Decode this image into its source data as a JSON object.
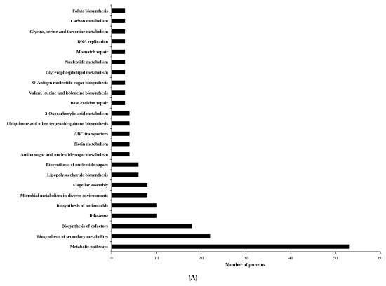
{
  "chart_data": {
    "type": "bar",
    "orientation": "horizontal",
    "categories": [
      "Folate biosynthesis",
      "Carbon metabolism",
      "Glycine, serine and threonine metabolism",
      "DNA replication",
      "Mismatch repair",
      "Nucleotide metabolism",
      "Glycerophospholipid metabolism",
      "O-Antigen nucleotide sugar biosynthesis",
      "Valine, leucine and isoleucine biosynthesis",
      "Base excision repair",
      "2-Oxocarboxylic acid metabolism",
      "Ubiquinone and other terpenoid-quinone biosynthesis",
      "ABC transporters",
      "Biotin metabolism",
      "Amino sugar and nucleotide sugar metabolism",
      "Biosynthesis of nucleotide sugars",
      "Lipopolysaccharide biosynthesis",
      "Flagellar assembly",
      "Microbial metabolism in diverse environments",
      "Biosynthesis of amino acids",
      "Ribosome",
      "Biosynthesis of cofactors",
      "Biosynthesis of secondary metabolites",
      "Metabolic pathways"
    ],
    "values": [
      3,
      3,
      3,
      3,
      3,
      3,
      3,
      3,
      3,
      3,
      4,
      4,
      4,
      4,
      4,
      6,
      6,
      8,
      8,
      10,
      10,
      18,
      22,
      53
    ],
    "xlabel": "Number of proteins",
    "ylabel": "",
    "xlim": [
      0,
      60
    ],
    "xticks": [
      "0",
      "10",
      "20",
      "30",
      "40",
      "50",
      "60"
    ],
    "bar_color": "#000000",
    "grid": false,
    "legend": "none",
    "panel_label": "(A)"
  }
}
